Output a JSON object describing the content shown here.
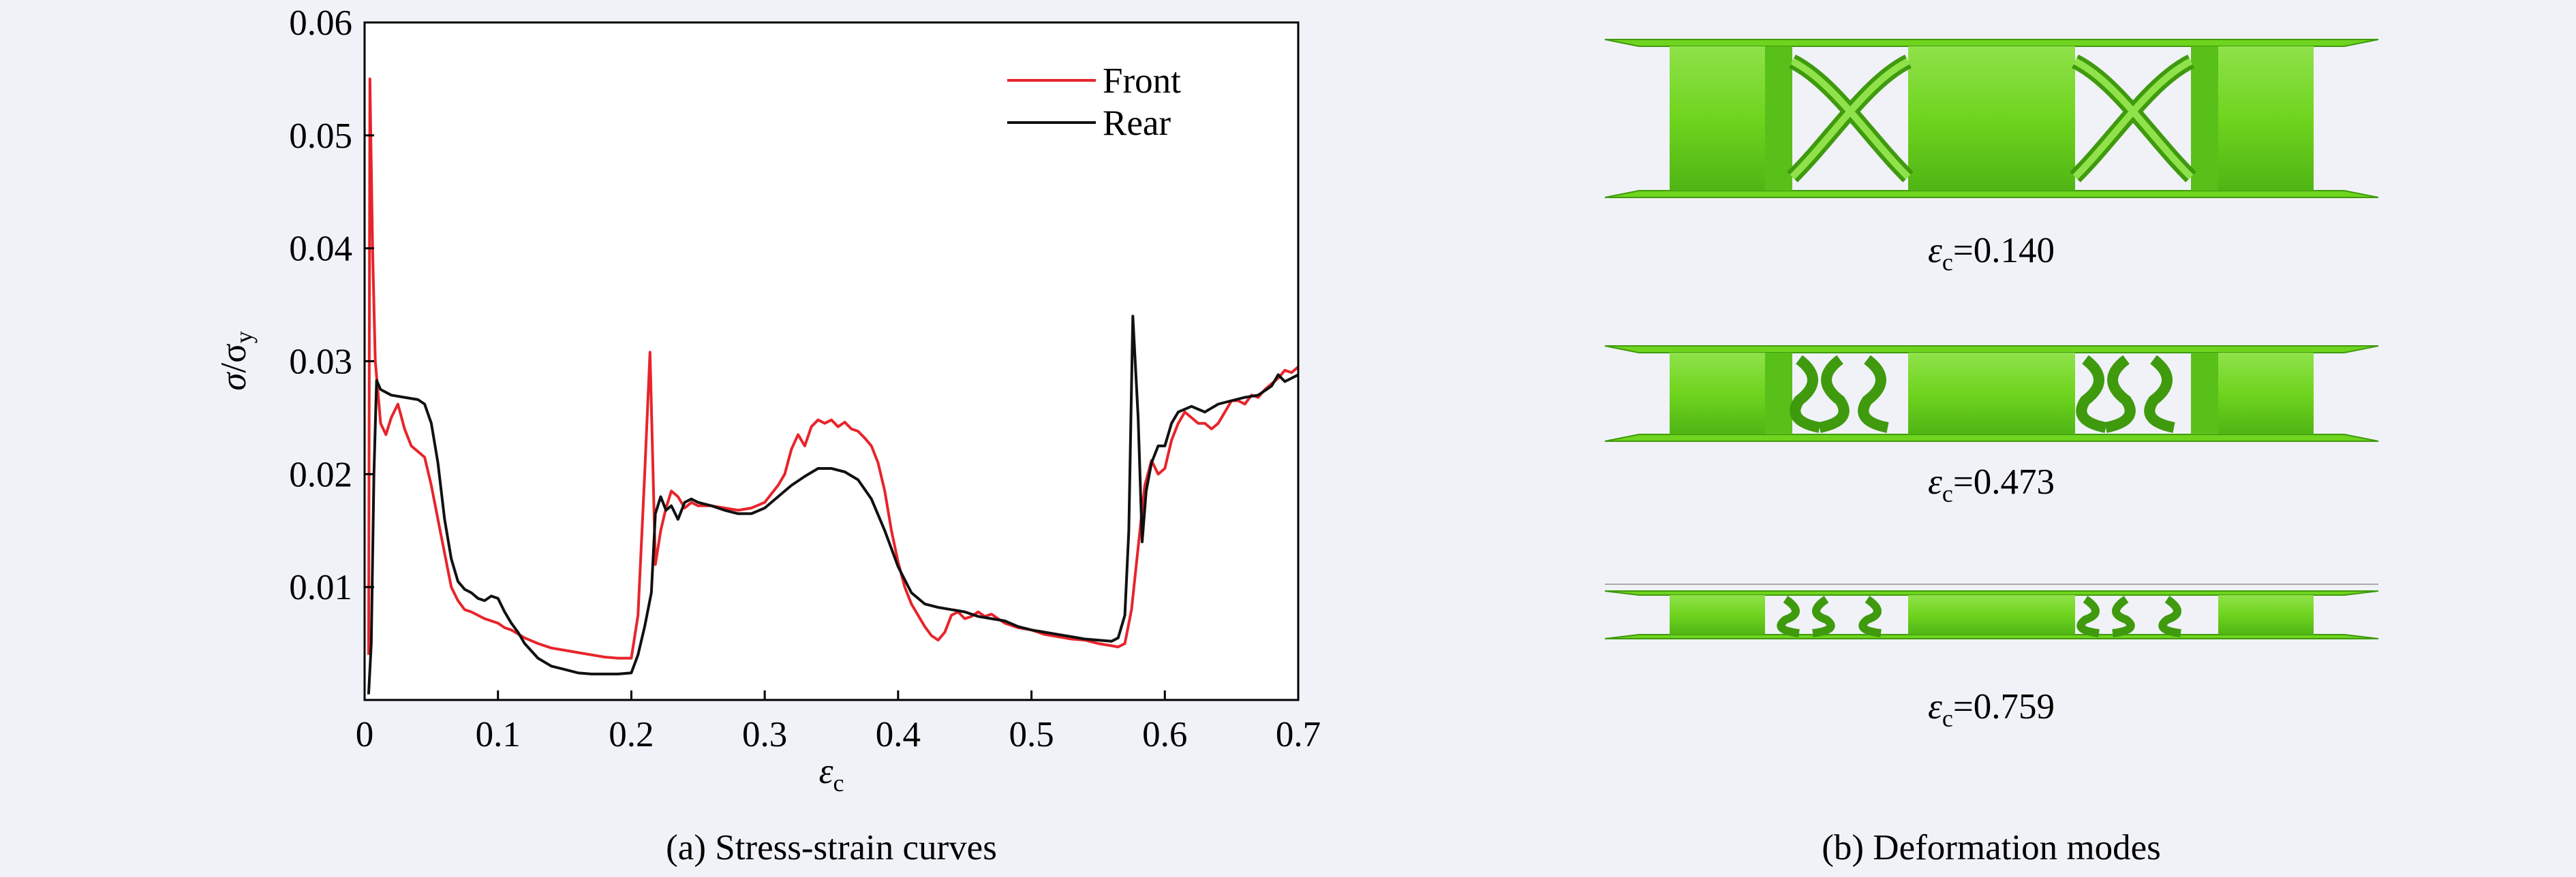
{
  "chart_data": {
    "type": "line",
    "xlim": [
      0,
      0.7
    ],
    "ylim": [
      0,
      0.06
    ],
    "x_ticks": [
      "0",
      "0.1",
      "0.2",
      "0.3",
      "0.4",
      "0.5",
      "0.6",
      "0.7"
    ],
    "y_ticks": [
      "0.01",
      "0.02",
      "0.03",
      "0.04",
      "0.05",
      "0.06"
    ],
    "legend_position": "top-right",
    "caption": "(a) Stress-strain curves",
    "series": [
      {
        "name": "Front",
        "color": "#e8242b",
        "points": [
          [
            0.003,
            0.004
          ],
          [
            0.004,
            0.055
          ],
          [
            0.006,
            0.04
          ],
          [
            0.008,
            0.03
          ],
          [
            0.012,
            0.0245
          ],
          [
            0.016,
            0.0235
          ],
          [
            0.02,
            0.025
          ],
          [
            0.025,
            0.0262
          ],
          [
            0.03,
            0.024
          ],
          [
            0.035,
            0.0225
          ],
          [
            0.04,
            0.022
          ],
          [
            0.045,
            0.0215
          ],
          [
            0.05,
            0.019
          ],
          [
            0.055,
            0.016
          ],
          [
            0.06,
            0.013
          ],
          [
            0.065,
            0.01
          ],
          [
            0.07,
            0.0088
          ],
          [
            0.075,
            0.008
          ],
          [
            0.08,
            0.0078
          ],
          [
            0.085,
            0.0075
          ],
          [
            0.09,
            0.0072
          ],
          [
            0.095,
            0.007
          ],
          [
            0.1,
            0.0068
          ],
          [
            0.105,
            0.0064
          ],
          [
            0.11,
            0.0062
          ],
          [
            0.12,
            0.0055
          ],
          [
            0.13,
            0.005
          ],
          [
            0.14,
            0.0046
          ],
          [
            0.15,
            0.0044
          ],
          [
            0.16,
            0.0042
          ],
          [
            0.17,
            0.004
          ],
          [
            0.18,
            0.0038
          ],
          [
            0.19,
            0.0037
          ],
          [
            0.2,
            0.0037
          ],
          [
            0.205,
            0.0075
          ],
          [
            0.21,
            0.02
          ],
          [
            0.214,
            0.0308
          ],
          [
            0.218,
            0.012
          ],
          [
            0.222,
            0.015
          ],
          [
            0.226,
            0.017
          ],
          [
            0.23,
            0.0185
          ],
          [
            0.235,
            0.018
          ],
          [
            0.24,
            0.017
          ],
          [
            0.245,
            0.0175
          ],
          [
            0.25,
            0.0172
          ],
          [
            0.26,
            0.0172
          ],
          [
            0.27,
            0.017
          ],
          [
            0.28,
            0.0168
          ],
          [
            0.29,
            0.017
          ],
          [
            0.3,
            0.0175
          ],
          [
            0.31,
            0.019
          ],
          [
            0.315,
            0.02
          ],
          [
            0.32,
            0.0222
          ],
          [
            0.325,
            0.0235
          ],
          [
            0.33,
            0.0225
          ],
          [
            0.335,
            0.0242
          ],
          [
            0.34,
            0.0248
          ],
          [
            0.345,
            0.0245
          ],
          [
            0.35,
            0.0248
          ],
          [
            0.355,
            0.0242
          ],
          [
            0.36,
            0.0246
          ],
          [
            0.365,
            0.024
          ],
          [
            0.37,
            0.0238
          ],
          [
            0.375,
            0.0232
          ],
          [
            0.38,
            0.0225
          ],
          [
            0.385,
            0.021
          ],
          [
            0.39,
            0.0185
          ],
          [
            0.395,
            0.015
          ],
          [
            0.4,
            0.0122
          ],
          [
            0.405,
            0.01
          ],
          [
            0.41,
            0.0085
          ],
          [
            0.415,
            0.0075
          ],
          [
            0.42,
            0.0065
          ],
          [
            0.425,
            0.0057
          ],
          [
            0.43,
            0.0053
          ],
          [
            0.435,
            0.006
          ],
          [
            0.44,
            0.0075
          ],
          [
            0.445,
            0.0078
          ],
          [
            0.45,
            0.0072
          ],
          [
            0.455,
            0.0074
          ],
          [
            0.46,
            0.0078
          ],
          [
            0.465,
            0.0074
          ],
          [
            0.47,
            0.0076
          ],
          [
            0.475,
            0.0072
          ],
          [
            0.48,
            0.0068
          ],
          [
            0.49,
            0.0064
          ],
          [
            0.5,
            0.0062
          ],
          [
            0.51,
            0.0058
          ],
          [
            0.52,
            0.0056
          ],
          [
            0.53,
            0.0054
          ],
          [
            0.54,
            0.0053
          ],
          [
            0.55,
            0.005
          ],
          [
            0.56,
            0.0048
          ],
          [
            0.565,
            0.0047
          ],
          [
            0.57,
            0.005
          ],
          [
            0.575,
            0.008
          ],
          [
            0.58,
            0.0135
          ],
          [
            0.585,
            0.019
          ],
          [
            0.59,
            0.0212
          ],
          [
            0.595,
            0.02
          ],
          [
            0.6,
            0.0205
          ],
          [
            0.605,
            0.023
          ],
          [
            0.61,
            0.0245
          ],
          [
            0.615,
            0.0255
          ],
          [
            0.62,
            0.025
          ],
          [
            0.625,
            0.0245
          ],
          [
            0.63,
            0.0245
          ],
          [
            0.635,
            0.024
          ],
          [
            0.64,
            0.0245
          ],
          [
            0.645,
            0.0255
          ],
          [
            0.65,
            0.0265
          ],
          [
            0.655,
            0.0265
          ],
          [
            0.66,
            0.0262
          ],
          [
            0.665,
            0.027
          ],
          [
            0.67,
            0.0268
          ],
          [
            0.675,
            0.0275
          ],
          [
            0.68,
            0.028
          ],
          [
            0.685,
            0.0285
          ],
          [
            0.69,
            0.0292
          ],
          [
            0.695,
            0.029
          ],
          [
            0.7,
            0.0295
          ]
        ]
      },
      {
        "name": "Rear",
        "color": "#111111",
        "points": [
          [
            0.003,
            0.0005
          ],
          [
            0.005,
            0.005
          ],
          [
            0.007,
            0.02
          ],
          [
            0.009,
            0.0283
          ],
          [
            0.012,
            0.0275
          ],
          [
            0.02,
            0.027
          ],
          [
            0.03,
            0.0268
          ],
          [
            0.04,
            0.0266
          ],
          [
            0.045,
            0.0262
          ],
          [
            0.05,
            0.0245
          ],
          [
            0.055,
            0.021
          ],
          [
            0.06,
            0.016
          ],
          [
            0.065,
            0.0125
          ],
          [
            0.07,
            0.0105
          ],
          [
            0.075,
            0.0098
          ],
          [
            0.08,
            0.0095
          ],
          [
            0.085,
            0.009
          ],
          [
            0.09,
            0.0088
          ],
          [
            0.095,
            0.0092
          ],
          [
            0.1,
            0.009
          ],
          [
            0.105,
            0.0078
          ],
          [
            0.11,
            0.0068
          ],
          [
            0.115,
            0.006
          ],
          [
            0.12,
            0.005
          ],
          [
            0.13,
            0.0037
          ],
          [
            0.14,
            0.003
          ],
          [
            0.15,
            0.0027
          ],
          [
            0.16,
            0.0024
          ],
          [
            0.17,
            0.0023
          ],
          [
            0.18,
            0.0023
          ],
          [
            0.19,
            0.0023
          ],
          [
            0.2,
            0.0024
          ],
          [
            0.205,
            0.004
          ],
          [
            0.21,
            0.0065
          ],
          [
            0.215,
            0.0095
          ],
          [
            0.218,
            0.0165
          ],
          [
            0.222,
            0.018
          ],
          [
            0.226,
            0.0168
          ],
          [
            0.23,
            0.0172
          ],
          [
            0.235,
            0.016
          ],
          [
            0.24,
            0.0175
          ],
          [
            0.245,
            0.0178
          ],
          [
            0.25,
            0.0175
          ],
          [
            0.26,
            0.0172
          ],
          [
            0.27,
            0.0168
          ],
          [
            0.28,
            0.0165
          ],
          [
            0.29,
            0.0165
          ],
          [
            0.3,
            0.017
          ],
          [
            0.31,
            0.018
          ],
          [
            0.32,
            0.019
          ],
          [
            0.33,
            0.0198
          ],
          [
            0.34,
            0.0205
          ],
          [
            0.35,
            0.0205
          ],
          [
            0.36,
            0.0202
          ],
          [
            0.37,
            0.0195
          ],
          [
            0.38,
            0.0178
          ],
          [
            0.39,
            0.015
          ],
          [
            0.4,
            0.0118
          ],
          [
            0.41,
            0.0095
          ],
          [
            0.42,
            0.0085
          ],
          [
            0.43,
            0.0082
          ],
          [
            0.44,
            0.008
          ],
          [
            0.45,
            0.0078
          ],
          [
            0.46,
            0.0074
          ],
          [
            0.47,
            0.0072
          ],
          [
            0.48,
            0.007
          ],
          [
            0.49,
            0.0065
          ],
          [
            0.5,
            0.0062
          ],
          [
            0.51,
            0.006
          ],
          [
            0.52,
            0.0058
          ],
          [
            0.53,
            0.0056
          ],
          [
            0.54,
            0.0054
          ],
          [
            0.55,
            0.0053
          ],
          [
            0.56,
            0.0052
          ],
          [
            0.565,
            0.0055
          ],
          [
            0.57,
            0.0075
          ],
          [
            0.573,
            0.015
          ],
          [
            0.576,
            0.034
          ],
          [
            0.58,
            0.025
          ],
          [
            0.583,
            0.014
          ],
          [
            0.586,
            0.0185
          ],
          [
            0.59,
            0.021
          ],
          [
            0.595,
            0.0225
          ],
          [
            0.6,
            0.0225
          ],
          [
            0.605,
            0.0245
          ],
          [
            0.61,
            0.0255
          ],
          [
            0.62,
            0.026
          ],
          [
            0.63,
            0.0255
          ],
          [
            0.64,
            0.0262
          ],
          [
            0.65,
            0.0265
          ],
          [
            0.66,
            0.0268
          ],
          [
            0.67,
            0.027
          ],
          [
            0.68,
            0.0278
          ],
          [
            0.685,
            0.0288
          ],
          [
            0.69,
            0.0282
          ],
          [
            0.695,
            0.0285
          ],
          [
            0.7,
            0.0288
          ]
        ]
      }
    ]
  },
  "deformation": {
    "caption": "(b) Deformation modes",
    "modes": [
      {
        "label_value": "=0.140",
        "compression": 0.14
      },
      {
        "label_value": "=0.473",
        "compression": 0.473
      },
      {
        "label_value": "=0.759",
        "compression": 0.759
      }
    ]
  },
  "colors": {
    "plot_background": "#ffffff",
    "page_background": "#f0f2f7",
    "lattice_green": "#6fd41e",
    "lattice_dark": "#3f9a0e",
    "lattice_light": "#9be85c"
  }
}
